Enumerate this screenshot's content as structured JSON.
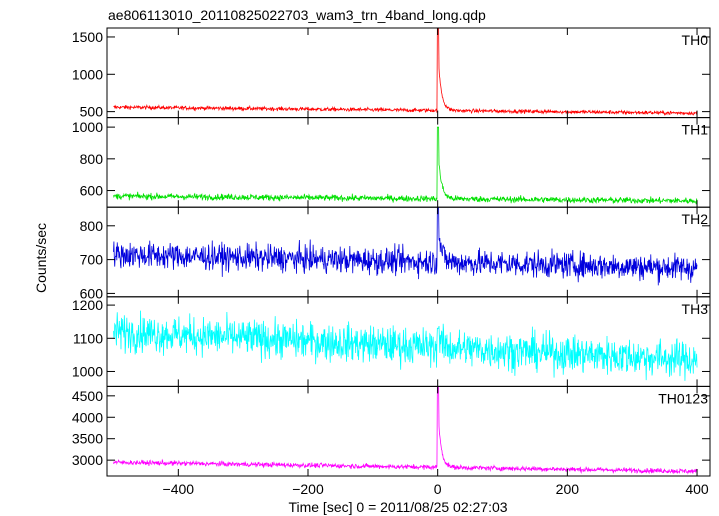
{
  "chart_data": {
    "type": "line",
    "title": "ae806113010_20110825022703_wam3_trn_4band_long.qdp",
    "xlabel": "Time [sec] 0 = 2011/08/25 02:27:03",
    "ylabel": "Counts/sec",
    "xlim": [
      -510,
      420
    ],
    "xticks": [
      -400,
      -200,
      0,
      200,
      400
    ],
    "xtick_labels": [
      "−400",
      "−200",
      "0",
      "200",
      "400"
    ],
    "grid": false,
    "panels": [
      {
        "name": "TH0",
        "color": "#ff0000",
        "ylim": [
          420,
          1620
        ],
        "yticks": [
          500,
          1000,
          1500
        ],
        "ytick_labels": [
          "500",
          "1000",
          "1500"
        ],
        "baseline_start": 560,
        "baseline_end": 480,
        "noise": 18,
        "peak": 1620,
        "approx_points": [
          [
            -500,
            560
          ],
          [
            -300,
            545
          ],
          [
            -100,
            530
          ],
          [
            -5,
            525
          ],
          [
            0,
            1620
          ],
          [
            5,
            1150
          ],
          [
            20,
            600
          ],
          [
            200,
            510
          ],
          [
            400,
            480
          ]
        ]
      },
      {
        "name": "TH1",
        "color": "#00e000",
        "ylim": [
          495,
          1060
        ],
        "yticks": [
          600,
          800,
          1000
        ],
        "ytick_labels": [
          "600",
          "800",
          "1000"
        ],
        "baseline_start": 565,
        "baseline_end": 535,
        "noise": 14,
        "peak": 1000,
        "approx_points": [
          [
            -500,
            565
          ],
          [
            -300,
            560
          ],
          [
            -100,
            550
          ],
          [
            -5,
            548
          ],
          [
            0,
            1000
          ],
          [
            5,
            700
          ],
          [
            20,
            580
          ],
          [
            200,
            545
          ],
          [
            400,
            535
          ]
        ]
      },
      {
        "name": "TH2",
        "color": "#0000dd",
        "ylim": [
          590,
          855
        ],
        "yticks": [
          600,
          700,
          800
        ],
        "ytick_labels": [
          "600",
          "700",
          "800"
        ],
        "baseline_start": 715,
        "baseline_end": 675,
        "noise": 28,
        "peak": 855,
        "approx_points": [
          [
            -500,
            715
          ],
          [
            -300,
            700
          ],
          [
            -100,
            690
          ],
          [
            0,
            855
          ],
          [
            5,
            760
          ],
          [
            200,
            680
          ],
          [
            400,
            675
          ]
        ]
      },
      {
        "name": "TH3",
        "color": "#00ffff",
        "ylim": [
          955,
          1225
        ],
        "yticks": [
          1000,
          1100,
          1200
        ],
        "ytick_labels": [
          "1000",
          "1100",
          "1200"
        ],
        "baseline_start": 1120,
        "baseline_end": 1035,
        "noise": 40,
        "peak": 1130,
        "approx_points": [
          [
            -500,
            1120
          ],
          [
            -300,
            1095
          ],
          [
            -100,
            1070
          ],
          [
            0,
            1090
          ],
          [
            200,
            1055
          ],
          [
            400,
            1035
          ]
        ]
      },
      {
        "name": "TH0123",
        "color": "#ff00ff",
        "ylim": [
          2630,
          4720
        ],
        "yticks": [
          3000,
          3500,
          4000,
          4500
        ],
        "ytick_labels": [
          "3000",
          "3500",
          "4000",
          "4500"
        ],
        "baseline_start": 2950,
        "baseline_end": 2740,
        "noise": 40,
        "peak": 4720,
        "approx_points": [
          [
            -500,
            2950
          ],
          [
            -300,
            2900
          ],
          [
            -100,
            2840
          ],
          [
            0,
            4720
          ],
          [
            5,
            3800
          ],
          [
            20,
            2950
          ],
          [
            200,
            2790
          ],
          [
            400,
            2740
          ]
        ]
      }
    ]
  }
}
